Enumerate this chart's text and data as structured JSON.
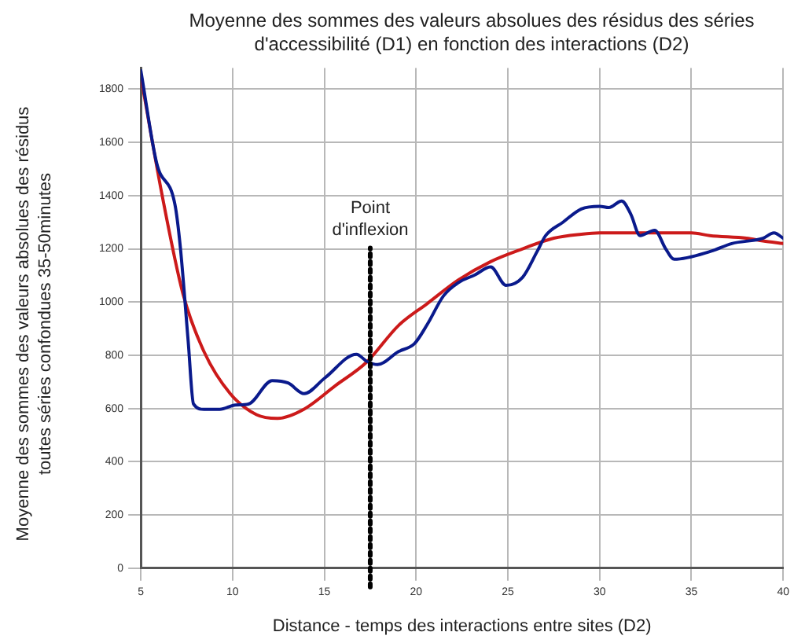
{
  "chart_data": {
    "type": "line",
    "title": "Moyenne des sommes des valeurs absolues des résidus des séries d'accessibilité (D1) en fonction des interactions (D2)",
    "xlabel": "Distance - temps des interactions entre sites (D2)",
    "ylabel": "Moyenne des sommes des valeurs absolues des résidus toutes séries confondues 35-50minutes",
    "x": [
      5,
      5.86,
      6.86,
      7.15,
      7.58,
      7.87,
      8.44,
      9.3,
      10.16,
      10.87,
      12.16,
      13.02,
      13.9,
      15.03,
      16.75,
      17.3,
      17.9,
      19.04,
      19.9,
      20.6,
      21.5,
      22.3,
      23.2,
      24.06,
      24.9,
      25.8,
      26.6,
      27.06,
      28,
      29,
      30,
      30.5,
      31.2,
      31.7,
      32.2,
      33,
      33.6,
      34.06,
      36.06,
      37.2,
      38.9,
      39.5,
      40
    ],
    "series": [
      {
        "color": "#0a1a8c",
        "values": [
          1870,
          1523,
          1366,
          1208,
          853,
          617,
          597,
          597,
          613,
          617,
          705,
          696,
          656,
          715,
          804,
          778,
          765,
          814,
          843,
          915,
          1024,
          1073,
          1102,
          1132,
          1063,
          1093,
          1191,
          1250,
          1300,
          1350,
          1360,
          1355,
          1380,
          1330,
          1250,
          1270,
          1200,
          1161,
          1191,
          1220,
          1240,
          1260,
          1240
        ]
      },
      {
        "color": "#cc1a1a",
        "x": [
          5,
          6.15,
          7.3,
          8.44,
          9.87,
          11.3,
          12.45,
          13.88,
          15.6,
          17.3,
          19.04,
          20.6,
          22.3,
          24.06,
          25.8,
          27.5,
          29,
          30,
          32,
          35,
          36,
          38,
          38.9,
          40
        ],
        "values": [
          1848,
          1405,
          1030,
          814,
          656,
          577,
          563,
          597,
          686,
          774,
          912,
          994,
          1083,
          1152,
          1200,
          1240,
          1255,
          1260,
          1260,
          1260,
          1250,
          1240,
          1230,
          1220
        ]
      }
    ],
    "xlim": [
      5,
      40
    ],
    "xticks": [
      5,
      10,
      15,
      20,
      25,
      30,
      35,
      40
    ],
    "ylim": [
      0,
      1880
    ],
    "yticks": [
      0,
      200,
      400,
      600,
      800,
      1000,
      1200,
      1400,
      1600,
      1800
    ],
    "grid": true,
    "legend": false,
    "marker": "none",
    "line_style": "solid",
    "ref_lines": [
      {
        "axis": "x",
        "value": 17.5,
        "label": "Point d'inflexion",
        "color": "#000000",
        "line_style": "dotted"
      }
    ]
  }
}
